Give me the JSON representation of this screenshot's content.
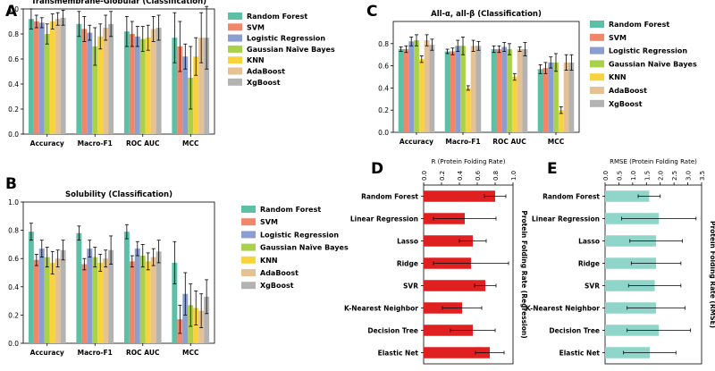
{
  "colors": {
    "Random Forest": "#5bc0a6",
    "SVM": "#f0866a",
    "Logistic Regression": "#8a9ed2",
    "Gaussian Naive Bayes": "#aad14a",
    "KNN": "#f8d33c",
    "AdaBoost": "#e6c193",
    "XgBoost": "#b3b3b3",
    "bar_red": "#e02020",
    "bar_teal": "#8fd5c9",
    "error": "#000000"
  },
  "panel_letters": [
    "A",
    "B",
    "C",
    "D",
    "E"
  ],
  "legend_labels": [
    "Random Forest",
    "SVM",
    "Logistic Regression",
    "Gaussian Naïve Bayes",
    "KNN",
    "AdaBoost",
    "XgBoost"
  ],
  "chart_data": [
    {
      "id": "A",
      "type": "bar",
      "title": "Transmembrane-Globular (Classification)",
      "categories": [
        "Accuracy",
        "Macro-F1",
        "ROC AUC",
        "MCC"
      ],
      "ylim": [
        0,
        1.0
      ],
      "yticks": [
        "0.0",
        "0.2",
        "0.4",
        "0.6",
        "0.8",
        "1.0"
      ],
      "ytick_values": [
        0,
        0.2,
        0.4,
        0.6,
        0.8,
        1.0
      ],
      "legend": "right",
      "series": [
        {
          "name": "Random Forest",
          "values": [
            0.92,
            0.88,
            0.82,
            0.77
          ],
          "errors": [
            0.08,
            0.1,
            0.12,
            0.2
          ]
        },
        {
          "name": "SVM",
          "values": [
            0.9,
            0.84,
            0.8,
            0.7
          ],
          "errors": [
            0.05,
            0.1,
            0.1,
            0.2
          ]
        },
        {
          "name": "Logistic Regression",
          "values": [
            0.89,
            0.81,
            0.78,
            0.62
          ],
          "errors": [
            0.04,
            0.06,
            0.08,
            0.1
          ]
        },
        {
          "name": "Gaussian Naive Bayes",
          "values": [
            0.8,
            0.7,
            0.76,
            0.45
          ],
          "errors": [
            0.08,
            0.15,
            0.1,
            0.25
          ]
        },
        {
          "name": "KNN",
          "values": [
            0.9,
            0.78,
            0.77,
            0.62
          ],
          "errors": [
            0.06,
            0.1,
            0.1,
            0.15
          ]
        },
        {
          "name": "AdaBoost",
          "values": [
            0.92,
            0.85,
            0.84,
            0.77
          ],
          "errors": [
            0.05,
            0.1,
            0.1,
            0.2
          ]
        },
        {
          "name": "XgBoost",
          "values": [
            0.93,
            0.88,
            0.85,
            0.77
          ],
          "errors": [
            0.06,
            0.1,
            0.1,
            0.25
          ]
        }
      ]
    },
    {
      "id": "B",
      "type": "bar",
      "title": "Solubility (Classification)",
      "categories": [
        "Accuracy",
        "Macro-F1",
        "ROC AUC",
        "MCC"
      ],
      "ylim": [
        0,
        1.0
      ],
      "yticks": [
        "0.0",
        "0.2",
        "0.4",
        "0.6",
        "0.8",
        "1.0"
      ],
      "ytick_values": [
        0,
        0.2,
        0.4,
        0.6,
        0.8,
        1.0
      ],
      "legend": "right",
      "series": [
        {
          "name": "Random Forest",
          "values": [
            0.79,
            0.78,
            0.79,
            0.57
          ],
          "errors": [
            0.06,
            0.05,
            0.05,
            0.15
          ]
        },
        {
          "name": "SVM",
          "values": [
            0.59,
            0.56,
            0.58,
            0.17
          ],
          "errors": [
            0.04,
            0.04,
            0.04,
            0.1
          ]
        },
        {
          "name": "Logistic Regression",
          "values": [
            0.67,
            0.67,
            0.67,
            0.35
          ],
          "errors": [
            0.06,
            0.06,
            0.05,
            0.15
          ]
        },
        {
          "name": "Gaussian Naive Bayes",
          "values": [
            0.61,
            0.61,
            0.62,
            0.27
          ],
          "errors": [
            0.07,
            0.07,
            0.08,
            0.15
          ]
        },
        {
          "name": "KNN",
          "values": [
            0.57,
            0.57,
            0.58,
            0.25
          ],
          "errors": [
            0.08,
            0.06,
            0.06,
            0.12
          ]
        },
        {
          "name": "AdaBoost",
          "values": [
            0.6,
            0.6,
            0.61,
            0.23
          ],
          "errors": [
            0.06,
            0.06,
            0.06,
            0.12
          ]
        },
        {
          "name": "XgBoost",
          "values": [
            0.66,
            0.66,
            0.65,
            0.33
          ],
          "errors": [
            0.07,
            0.1,
            0.08,
            0.12
          ]
        }
      ]
    },
    {
      "id": "C",
      "type": "bar",
      "title": "All-α, all-β (Classification)",
      "categories": [
        "Accuracy",
        "Macro-F1",
        "ROC AUC",
        "MCC"
      ],
      "ylim": [
        0,
        1.0
      ],
      "yticks": [
        "0.0",
        "0.2",
        "0.4",
        "0.6",
        "0.8"
      ],
      "ytick_values": [
        0,
        0.2,
        0.4,
        0.6,
        0.8
      ],
      "legend": "right",
      "series": [
        {
          "name": "Random Forest",
          "values": [
            0.75,
            0.73,
            0.75,
            0.57
          ],
          "errors": [
            0.02,
            0.02,
            0.03,
            0.04
          ]
        },
        {
          "name": "SVM",
          "values": [
            0.75,
            0.73,
            0.75,
            0.58
          ],
          "errors": [
            0.03,
            0.03,
            0.03,
            0.05
          ]
        },
        {
          "name": "Logistic Regression",
          "values": [
            0.82,
            0.78,
            0.77,
            0.63
          ],
          "errors": [
            0.04,
            0.05,
            0.04,
            0.05
          ]
        },
        {
          "name": "Gaussian Naive Bayes",
          "values": [
            0.83,
            0.78,
            0.75,
            0.63
          ],
          "errors": [
            0.05,
            0.08,
            0.05,
            0.08
          ]
        },
        {
          "name": "KNN",
          "values": [
            0.66,
            0.4,
            0.5,
            0.2
          ],
          "errors": [
            0.03,
            0.02,
            0.03,
            0.03
          ]
        },
        {
          "name": "AdaBoost",
          "values": [
            0.83,
            0.78,
            0.75,
            0.63
          ],
          "errors": [
            0.05,
            0.05,
            0.02,
            0.07
          ]
        },
        {
          "name": "XgBoost",
          "values": [
            0.79,
            0.78,
            0.75,
            0.63
          ],
          "errors": [
            0.05,
            0.04,
            0.06,
            0.07
          ]
        }
      ]
    },
    {
      "id": "D",
      "type": "bar",
      "orientation": "horizontal",
      "xlabel": "R (Protein Folding Rate)",
      "ylabel_right": "Protein Folding Rate (Regression)",
      "xlim": [
        0,
        1.0
      ],
      "xticks": [
        "0.0",
        "0.2",
        "0.4",
        "0.6",
        "0.8",
        "1.0"
      ],
      "xtick_values": [
        0,
        0.2,
        0.4,
        0.6,
        0.8,
        1.0
      ],
      "categories": [
        "Random Forest",
        "Linear Regression",
        "Lasso",
        "Ridge",
        "SVR",
        "K-Nearest Neighbor",
        "Decision Tree",
        "Elastic Net"
      ],
      "values": [
        0.8,
        0.46,
        0.55,
        0.53,
        0.69,
        0.43,
        0.55,
        0.74
      ],
      "errors": [
        0.12,
        0.35,
        0.15,
        0.42,
        0.12,
        0.22,
        0.25,
        0.16
      ]
    },
    {
      "id": "E",
      "type": "bar",
      "orientation": "horizontal",
      "xlabel": "RMSE (Protein Folding Rate)",
      "ylabel_right": "Protein Folding Rate (RMSE)",
      "xlim": [
        0,
        3.5
      ],
      "xticks": [
        "0.0",
        "0.5",
        "1.0",
        "1.5",
        "2.0",
        "2.5",
        "3.0",
        "3.5"
      ],
      "xtick_values": [
        0,
        0.5,
        1.0,
        1.5,
        2.0,
        2.5,
        3.0,
        3.5
      ],
      "categories": [
        "Random Forest",
        "Linear Regression",
        "Lasso",
        "Ridge",
        "SVR",
        "K-Nearest Neighbor",
        "Decision Tree",
        "Elastic Net"
      ],
      "values": [
        1.6,
        1.95,
        1.85,
        1.85,
        1.8,
        1.85,
        1.95,
        1.62
      ],
      "errors": [
        0.4,
        1.35,
        0.95,
        0.9,
        0.95,
        1.05,
        1.15,
        0.95
      ]
    }
  ]
}
